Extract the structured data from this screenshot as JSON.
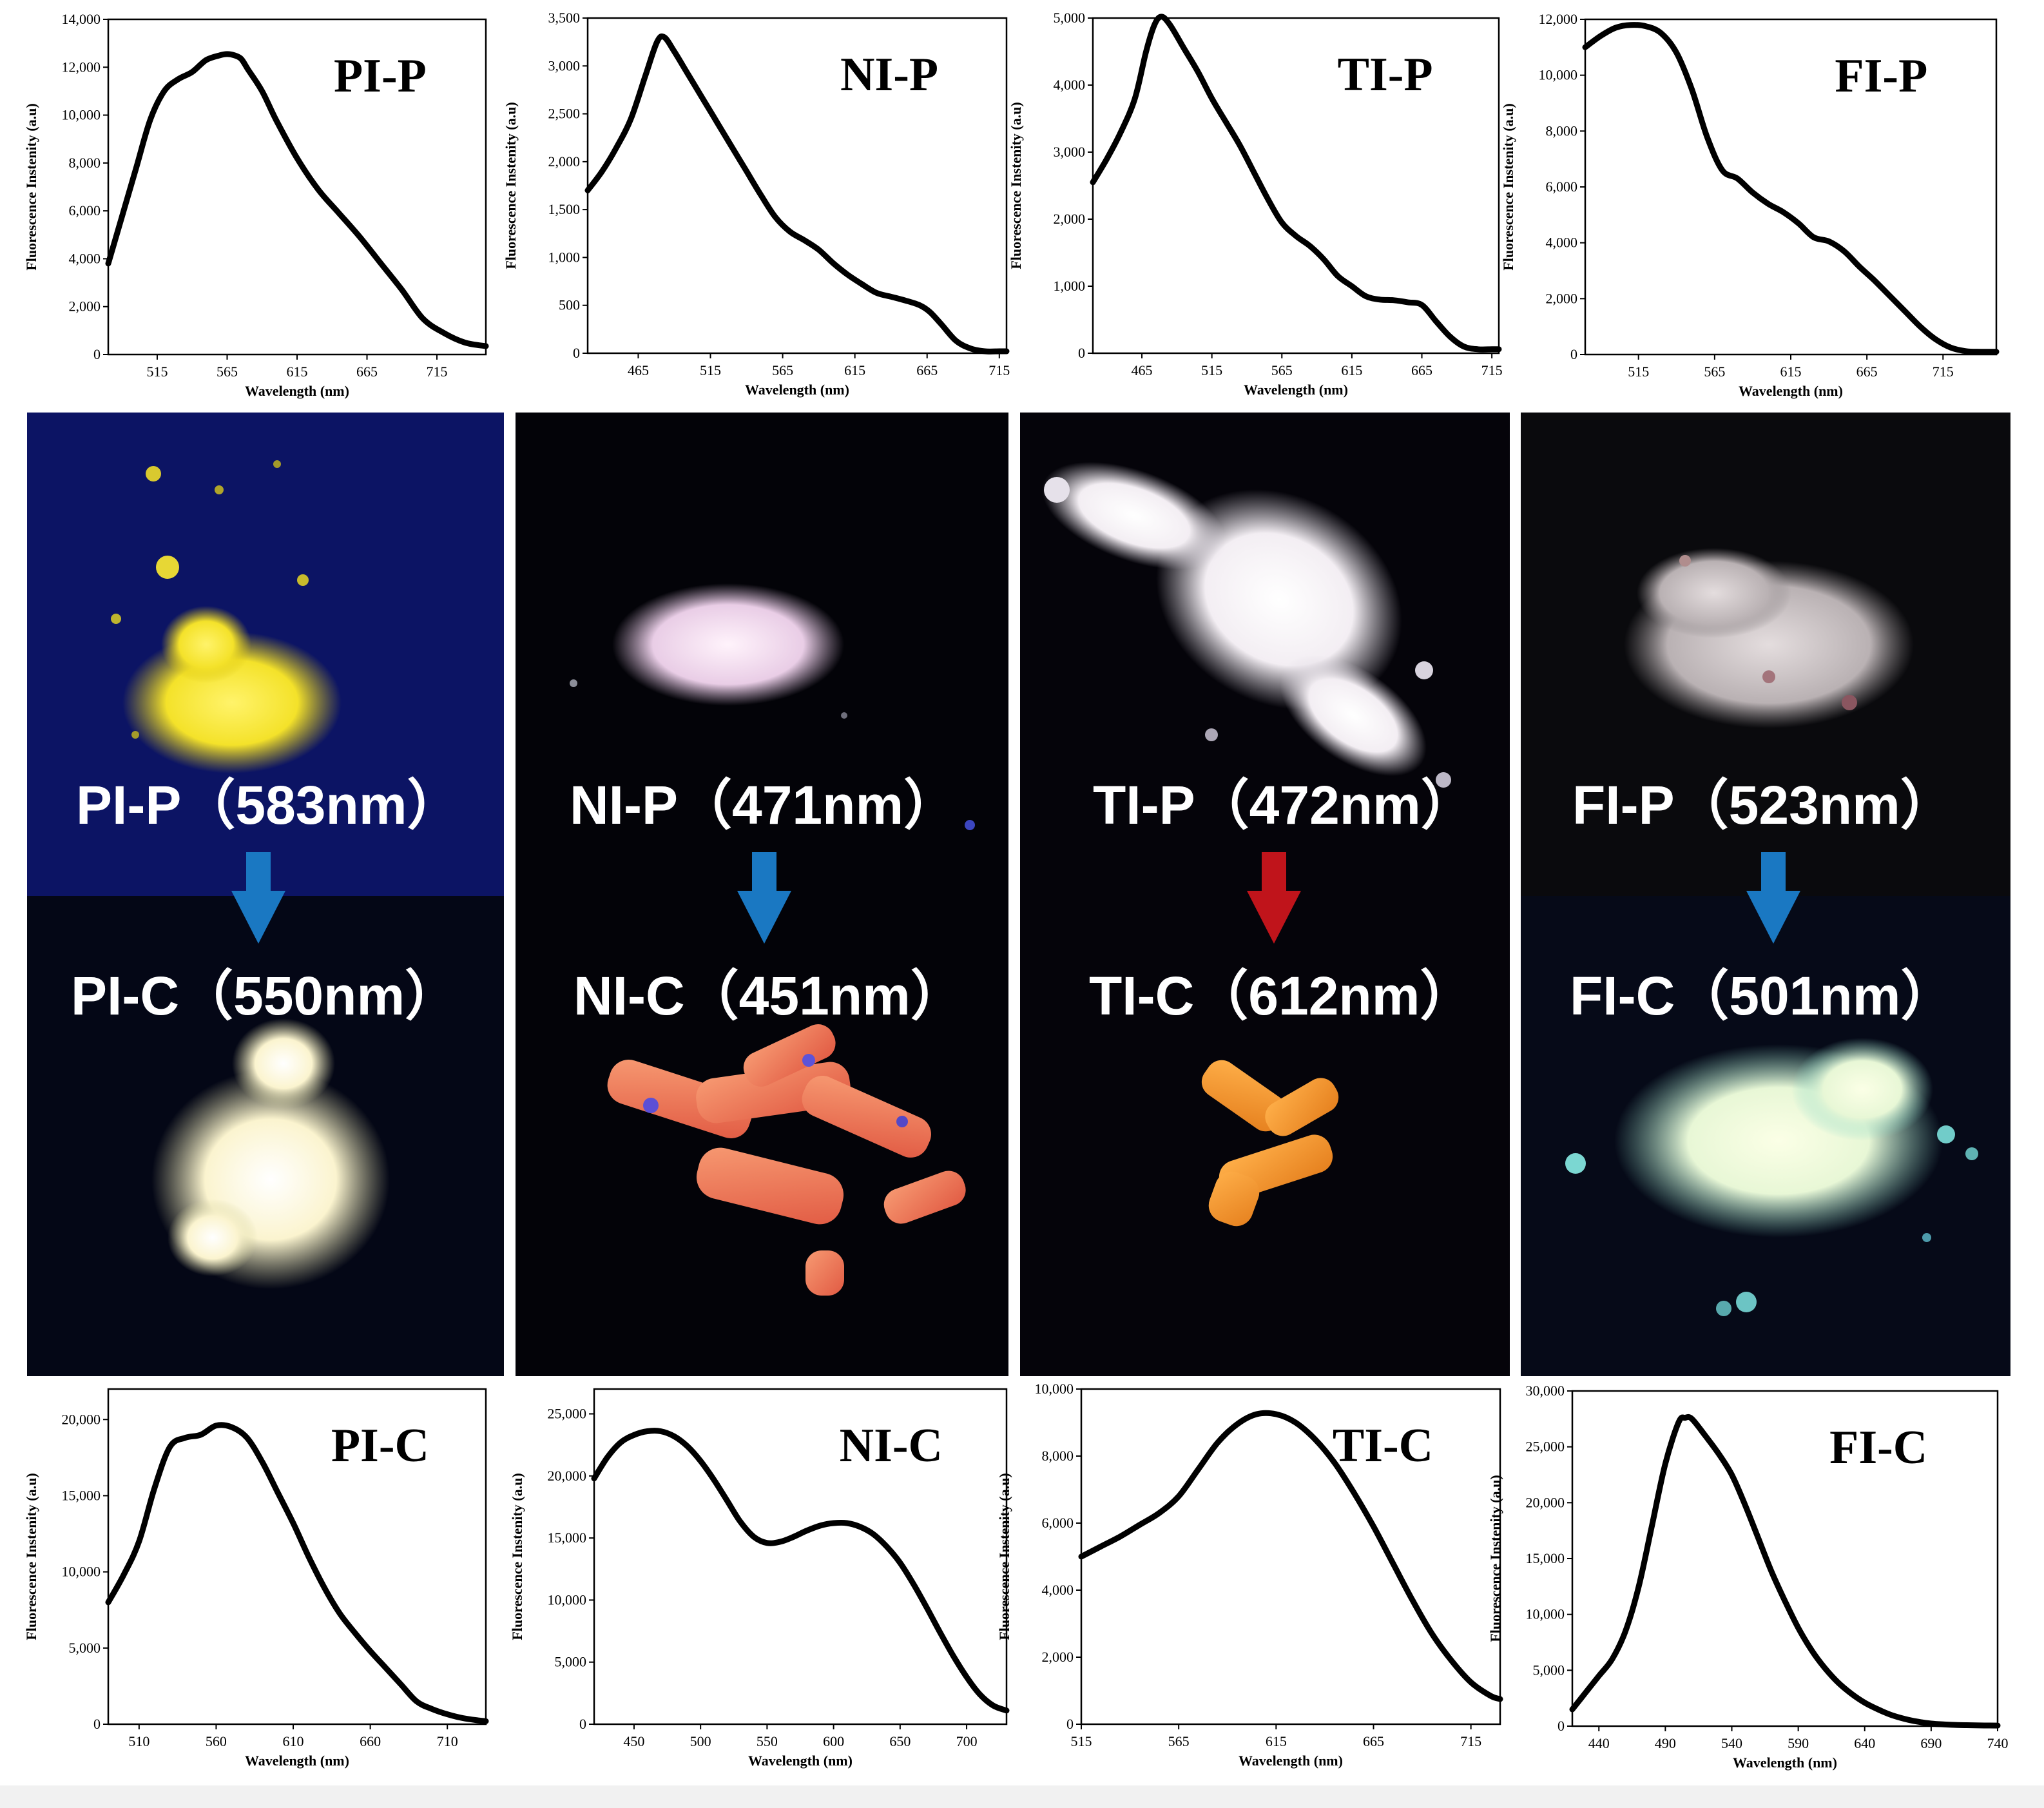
{
  "chart_data": [
    {
      "type": "line",
      "title": "PI-P",
      "xlabel": "Wavelength (nm)",
      "ylabel": "Fluorescence Instenity (a.u)",
      "xlim": [
        480,
        750
      ],
      "ylim": [
        0,
        14000
      ],
      "xticks": [
        515,
        565,
        615,
        665,
        715
      ],
      "xtick_labels": [
        "515",
        "565",
        "615",
        "665",
        "715"
      ],
      "yticks": [
        0,
        2000,
        4000,
        6000,
        8000,
        10000,
        12000,
        14000
      ],
      "ytick_labels": [
        "0",
        "2,000",
        "4,000",
        "6,000",
        "8,000",
        "10,000",
        "12,000",
        "14,000"
      ],
      "x": [
        480,
        490,
        500,
        510,
        520,
        530,
        540,
        550,
        560,
        565,
        570,
        575,
        580,
        590,
        600,
        615,
        630,
        645,
        660,
        675,
        690,
        705,
        720,
        735,
        750
      ],
      "y": [
        3800,
        5800,
        7800,
        9800,
        11000,
        11500,
        11800,
        12300,
        12500,
        12550,
        12500,
        12350,
        11900,
        11000,
        9800,
        8200,
        6900,
        5900,
        4900,
        3800,
        2700,
        1500,
        900,
        500,
        350
      ]
    },
    {
      "type": "line",
      "title": "NI-P",
      "xlabel": "Wavelength (nm)",
      "ylabel": "Fluorescence Instenity (a.u)",
      "xlim": [
        430,
        720
      ],
      "ylim": [
        0,
        3500
      ],
      "xticks": [
        465,
        515,
        565,
        615,
        665,
        715
      ],
      "xtick_labels": [
        "465",
        "515",
        "565",
        "615",
        "665",
        "715"
      ],
      "yticks": [
        0,
        500,
        1000,
        1500,
        2000,
        2500,
        3000,
        3500
      ],
      "ytick_labels": [
        "0",
        "500",
        "1,000",
        "1,500",
        "2,000",
        "2,500",
        "3,000",
        "3,500"
      ],
      "x": [
        430,
        440,
        450,
        460,
        470,
        478,
        483,
        490,
        500,
        510,
        520,
        530,
        540,
        550,
        560,
        570,
        580,
        590,
        600,
        610,
        620,
        630,
        640,
        650,
        660,
        667,
        675,
        685,
        695,
        705,
        715,
        720
      ],
      "y": [
        1700,
        1900,
        2150,
        2450,
        2900,
        3250,
        3300,
        3150,
        2900,
        2650,
        2400,
        2150,
        1900,
        1650,
        1420,
        1270,
        1180,
        1080,
        940,
        820,
        720,
        630,
        590,
        550,
        500,
        430,
        300,
        130,
        50,
        20,
        20,
        20
      ]
    },
    {
      "type": "line",
      "title": "TI-P",
      "xlabel": "Wavelength (nm)",
      "ylabel": "Fluorescence Instenity (a.u)",
      "xlim": [
        430,
        720
      ],
      "ylim": [
        0,
        5000
      ],
      "xticks": [
        465,
        515,
        565,
        615,
        665,
        715
      ],
      "xtick_labels": [
        "465",
        "515",
        "565",
        "615",
        "665",
        "715"
      ],
      "yticks": [
        0,
        1000,
        2000,
        3000,
        4000,
        5000
      ],
      "ytick_labels": [
        "0",
        "1,000",
        "2,000",
        "3,000",
        "4,000",
        "5,000"
      ],
      "x": [
        430,
        440,
        450,
        460,
        468,
        474,
        479,
        485,
        495,
        505,
        515,
        525,
        535,
        545,
        555,
        565,
        575,
        585,
        595,
        605,
        615,
        625,
        635,
        645,
        655,
        665,
        675,
        685,
        695,
        705,
        715,
        720
      ],
      "y": [
        2550,
        2900,
        3300,
        3800,
        4500,
        4900,
        5020,
        4900,
        4550,
        4200,
        3800,
        3450,
        3100,
        2700,
        2300,
        1950,
        1750,
        1600,
        1400,
        1150,
        1000,
        850,
        800,
        790,
        760,
        720,
        480,
        250,
        100,
        60,
        60,
        60
      ]
    },
    {
      "type": "line",
      "title": "FI-P",
      "xlabel": "Wavelength (nm)",
      "ylabel": "Fluorescence Instenity (a.u)",
      "xlim": [
        480,
        750
      ],
      "ylim": [
        0,
        12000
      ],
      "xticks": [
        515,
        565,
        615,
        665,
        715
      ],
      "xtick_labels": [
        "515",
        "565",
        "615",
        "665",
        "715"
      ],
      "yticks": [
        0,
        2000,
        4000,
        6000,
        8000,
        10000,
        12000
      ],
      "ytick_labels": [
        "0",
        "2,000",
        "4,000",
        "6,000",
        "8,000",
        "10,000",
        "12,000"
      ],
      "x": [
        480,
        490,
        500,
        510,
        520,
        530,
        540,
        550,
        560,
        570,
        580,
        590,
        600,
        610,
        620,
        630,
        640,
        650,
        660,
        670,
        680,
        690,
        700,
        710,
        720,
        730,
        740,
        750
      ],
      "y": [
        11000,
        11400,
        11700,
        11800,
        11750,
        11500,
        10800,
        9500,
        7800,
        6600,
        6300,
        5800,
        5400,
        5100,
        4700,
        4200,
        4050,
        3700,
        3150,
        2650,
        2100,
        1550,
        1000,
        550,
        250,
        120,
        100,
        100
      ]
    },
    {
      "type": "line",
      "title": "PI-C",
      "xlabel": "Wavelength (nm)",
      "ylabel": "Fluorescence Instenity (a.u)",
      "xlim": [
        490,
        735
      ],
      "ylim": [
        0,
        22000
      ],
      "xticks": [
        510,
        560,
        610,
        660,
        710
      ],
      "xtick_labels": [
        "510",
        "560",
        "610",
        "660",
        "710"
      ],
      "yticks": [
        0,
        5000,
        10000,
        15000,
        20000
      ],
      "ytick_labels": [
        "0",
        "5,000",
        "10,000",
        "15,000",
        "20,000"
      ],
      "x": [
        490,
        500,
        510,
        520,
        530,
        540,
        550,
        560,
        570,
        580,
        590,
        600,
        610,
        620,
        630,
        640,
        650,
        660,
        670,
        680,
        690,
        700,
        710,
        720,
        730,
        735
      ],
      "y": [
        8000,
        9800,
        12000,
        15500,
        18200,
        18800,
        19000,
        19600,
        19500,
        18800,
        17200,
        15200,
        13200,
        11000,
        9000,
        7300,
        6000,
        4800,
        3700,
        2600,
        1500,
        1000,
        650,
        400,
        250,
        200
      ]
    },
    {
      "type": "line",
      "title": "NI-C",
      "xlabel": "Wavelength (nm)",
      "ylabel": "Fluorescence Instenity (a.u)",
      "xlim": [
        420,
        730
      ],
      "ylim": [
        0,
        27000
      ],
      "xticks": [
        450,
        500,
        550,
        600,
        650,
        700
      ],
      "xtick_labels": [
        "450",
        "500",
        "550",
        "600",
        "650",
        "700"
      ],
      "yticks": [
        0,
        5000,
        10000,
        15000,
        20000,
        25000
      ],
      "ytick_labels": [
        "0",
        "5,000",
        "10,000",
        "15,000",
        "20,000",
        "25,000"
      ],
      "x": [
        420,
        430,
        440,
        450,
        460,
        470,
        480,
        490,
        500,
        510,
        520,
        530,
        540,
        550,
        560,
        570,
        580,
        590,
        600,
        610,
        620,
        630,
        640,
        650,
        660,
        670,
        680,
        690,
        700,
        710,
        720,
        730
      ],
      "y": [
        19800,
        21500,
        22700,
        23300,
        23600,
        23600,
        23200,
        22400,
        21200,
        19700,
        18000,
        16300,
        15100,
        14600,
        14700,
        15100,
        15600,
        16000,
        16200,
        16200,
        15900,
        15300,
        14300,
        13000,
        11300,
        9400,
        7400,
        5500,
        3800,
        2400,
        1500,
        1100
      ]
    },
    {
      "type": "line",
      "title": "TI-C",
      "xlabel": "Wavelength (nm)",
      "ylabel": "Fluorescence Instenity (a.u)",
      "xlim": [
        515,
        730
      ],
      "ylim": [
        0,
        10000
      ],
      "xticks": [
        515,
        565,
        615,
        665,
        715
      ],
      "xtick_labels": [
        "515",
        "565",
        "615",
        "665",
        "715"
      ],
      "yticks": [
        0,
        2000,
        4000,
        6000,
        8000,
        10000
      ],
      "ytick_labels": [
        "0",
        "2,000",
        "4,000",
        "6,000",
        "8,000",
        "10,000"
      ],
      "x": [
        515,
        525,
        535,
        545,
        555,
        565,
        575,
        585,
        595,
        605,
        615,
        625,
        635,
        645,
        655,
        665,
        675,
        685,
        695,
        705,
        715,
        725,
        730
      ],
      "y": [
        5000,
        5300,
        5600,
        5950,
        6300,
        6800,
        7600,
        8400,
        8950,
        9250,
        9250,
        9000,
        8500,
        7800,
        6900,
        5900,
        4800,
        3700,
        2700,
        1900,
        1250,
        850,
        750
      ]
    },
    {
      "type": "line",
      "title": "FI-C",
      "xlabel": "Wavelength (nm)",
      "ylabel": "Fluorescence Instenity (a.u)",
      "xlim": [
        420,
        740
      ],
      "ylim": [
        0,
        30000
      ],
      "xticks": [
        440,
        490,
        540,
        590,
        640,
        690,
        740
      ],
      "xtick_labels": [
        "440",
        "490",
        "540",
        "590",
        "640",
        "690",
        "740"
      ],
      "yticks": [
        0,
        5000,
        10000,
        15000,
        20000,
        25000,
        30000
      ],
      "ytick_labels": [
        "0",
        "5,000",
        "10,000",
        "15,000",
        "20,000",
        "25,000",
        "30,000"
      ],
      "x": [
        420,
        430,
        440,
        450,
        460,
        470,
        480,
        490,
        500,
        505,
        510,
        520,
        530,
        540,
        550,
        560,
        570,
        580,
        590,
        600,
        610,
        620,
        630,
        640,
        650,
        660,
        670,
        680,
        690,
        700,
        710,
        720,
        730,
        740
      ],
      "y": [
        1500,
        3000,
        4500,
        6000,
        8500,
        12500,
        18000,
        23500,
        27200,
        27600,
        27500,
        26000,
        24400,
        22500,
        19800,
        16800,
        13800,
        11200,
        8800,
        6800,
        5200,
        3900,
        2900,
        2100,
        1500,
        1000,
        650,
        400,
        230,
        150,
        100,
        80,
        60,
        50
      ]
    }
  ],
  "photo_labels": {
    "pi_p": "PI-P（583nm）",
    "pi_c": "PI-C（550nm）",
    "ni_p": "NI-P（471nm）",
    "ni_c": "NI-C（451nm）",
    "ti_p": "TI-P（472nm）",
    "ti_c": "TI-C（612nm）",
    "fi_p": "FI-P（523nm）",
    "fi_c": "FI-C（501nm）"
  },
  "colors": {
    "blue_arrow": "#1a78c2",
    "red_arrow": "#c0141b",
    "line": "#000000"
  }
}
